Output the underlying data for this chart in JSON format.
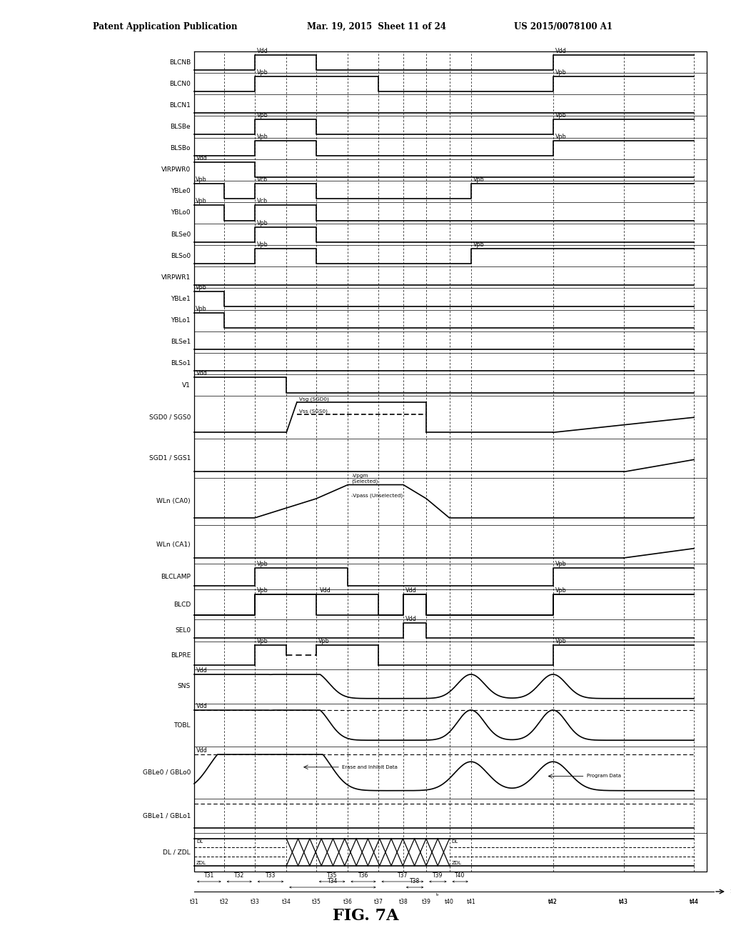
{
  "header_left": "Patent Application Publication",
  "header_mid": "Mar. 19, 2015  Sheet 11 of 24",
  "header_right": "US 2015/0078100 A1",
  "title": "FIG. 7A",
  "signals": [
    "BLCNB",
    "BLCN0",
    "BLCN1",
    "BLSBe",
    "BLSBo",
    "VIRPWR0",
    "YBLe0",
    "YBLo0",
    "BLSe0",
    "BLSo0",
    "VIRPWR1",
    "YBLe1",
    "YBLo1",
    "BLSe1",
    "BLSo1",
    "V1",
    "SGD0 / SGS0",
    "SGD1 / SGS1",
    "WLn (CA0)",
    "WLn (CA1)",
    "BLCLAMP",
    "BLCD",
    "SEL0",
    "BLPRE",
    "SNS",
    "TOBL",
    "GBLe0 / GBLo0",
    "GBLe1 / GBLo1",
    "DL / ZDL"
  ],
  "bg": "#ffffff",
  "lc": "#000000"
}
